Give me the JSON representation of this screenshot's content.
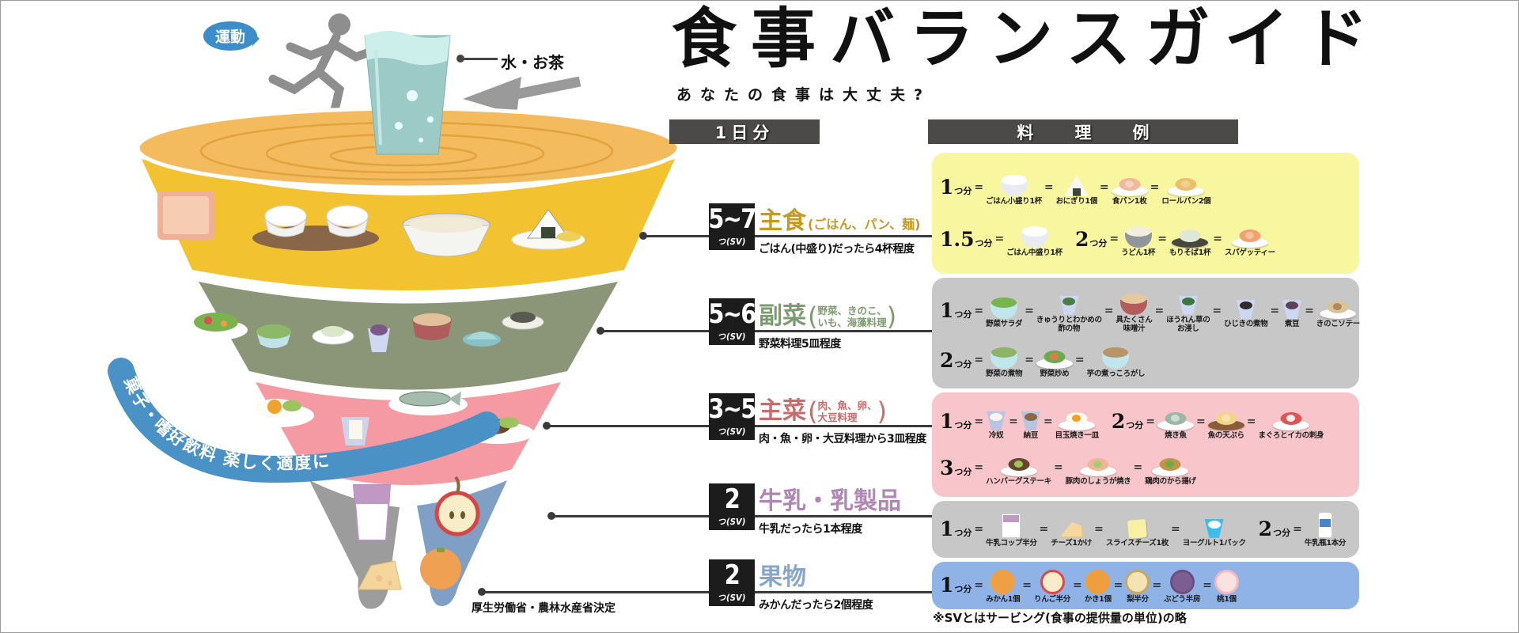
{
  "title": {
    "main": "食事バランスガイド",
    "subtitle": "あなたの食事は大丈夫?"
  },
  "headers": {
    "daily": "1日分",
    "examples": "料理例"
  },
  "koma": {
    "exercise_label": "運動",
    "water_label": "水・お茶",
    "ribbon_label": "菓子・嗜好飲料 楽しく適度に",
    "authority_label": "厚生労働省・農林水産省決定",
    "colors": {
      "disc": "#f3ba5e",
      "grain": "#f2c230",
      "vegetable": "#8b9679",
      "main_dish": "#f59aa2",
      "milk": "#9c9c9c",
      "fruit": "#7fa0c4",
      "ribbon": "#4a92c6",
      "water": "#9ccbc7"
    }
  },
  "categories": [
    {
      "id": "grain",
      "sv": "5~7",
      "sv_unit": "つ(SV)",
      "name": "主食",
      "name_color": "#c49a20",
      "paren_inline": "(ごはん、パン、麺)",
      "paren_lines": [],
      "desc": "ごはん(中盛り)だったら4杯程度"
    },
    {
      "id": "vegetable",
      "sv": "5~6",
      "sv_unit": "つ(SV)",
      "name": "副菜",
      "name_color": "#7d9b70",
      "paren_inline": "",
      "paren_lines": [
        "野菜、きのこ、",
        "いも、海藻料理"
      ],
      "desc": "野菜料理5皿程度"
    },
    {
      "id": "main-dish",
      "sv": "3~5",
      "sv_unit": "つ(SV)",
      "name": "主菜",
      "name_color": "#c76b6b",
      "paren_inline": "",
      "paren_lines": [
        "肉、魚、卵、",
        "大豆料理"
      ],
      "desc": "肉・魚・卵・大豆料理から3皿程度"
    },
    {
      "id": "milk",
      "sv": "2",
      "sv_unit": "つ(SV)",
      "name": "牛乳・乳製品",
      "name_color": "#af86b4",
      "paren_inline": "",
      "paren_lines": [],
      "desc": "牛乳だったら1本程度"
    },
    {
      "id": "fruit",
      "sv": "2",
      "sv_unit": "つ(SV)",
      "name": "果物",
      "name_color": "#88a6cc",
      "paren_inline": "",
      "paren_lines": [],
      "desc": "みかんだったら2個程度"
    }
  ],
  "panels": [
    {
      "id": "grain",
      "bg": "#f8f7a0",
      "rows": [
        {
          "groups": [
            {
              "num": "1",
              "unit": "つ分",
              "items": [
                {
                  "icon": "rice-bowl-small-icon",
                  "shape": "bowl",
                  "c1": "#e8ecf0",
                  "c2": "#ffffff",
                  "label": "ごはん小盛り1杯"
                },
                {
                  "icon": "onigiri-icon",
                  "shape": "triangle",
                  "c1": "#f8f8f2",
                  "c2": "#3a4836",
                  "label": "おにぎり1個"
                },
                {
                  "icon": "bread-slice-icon",
                  "shape": "plate",
                  "c1": "#f0b89c",
                  "c2": "#f6d2bc",
                  "label": "食パン1枚"
                },
                {
                  "icon": "bread-rolls-icon",
                  "shape": "plate",
                  "c1": "#ecc06a",
                  "c2": "#f2d290",
                  "label": "ロールパン2個"
                }
              ]
            }
          ]
        },
        {
          "groups": [
            {
              "num": "1.5",
              "unit": "つ分",
              "items": [
                {
                  "icon": "rice-bowl-medium-icon",
                  "shape": "bowl",
                  "c1": "#e8ecf0",
                  "c2": "#ffffff",
                  "label": "ごはん中盛り1杯"
                }
              ]
            },
            {
              "num": "2",
              "unit": "つ分",
              "items": [
                {
                  "icon": "udon-bowl-icon",
                  "shape": "bowl",
                  "c1": "#8f969c",
                  "c2": "#f4eede",
                  "label": "うどん1杯"
                },
                {
                  "icon": "soba-tray-icon",
                  "shape": "plate",
                  "pc": "#4a4640",
                  "c1": "#dfe8d8",
                  "label": "もりそば1杯"
                },
                {
                  "icon": "spaghetti-icon",
                  "shape": "plate",
                  "c1": "#f0a270",
                  "c2": "#f6c29a",
                  "label": "スパゲッティー"
                }
              ]
            }
          ]
        }
      ]
    },
    {
      "id": "vegetable",
      "bg": "#c7c7c7",
      "rows": [
        {
          "groups": [
            {
              "num": "1",
              "unit": "つ分",
              "items": [
                {
                  "icon": "salad-bowl-icon",
                  "shape": "bowl",
                  "c1": "#bfe6ec",
                  "c2": "#79b44e",
                  "label": "野菜サラダ"
                },
                {
                  "icon": "vinegared-dish-icon",
                  "shape": "cup",
                  "c1": "#ccd8f2",
                  "c2": "#4c7c44",
                  "label": "きゅうりとわかめの\n酢の物"
                },
                {
                  "icon": "miso-soup-icon",
                  "shape": "bowl",
                  "c1": "#b25c5c",
                  "c2": "#e6c8a0",
                  "label": "具たくさん\n味噌汁"
                },
                {
                  "icon": "spinach-ohitashi-icon",
                  "shape": "cup",
                  "c1": "#ccd8f2",
                  "c2": "#3c7840",
                  "label": "ほうれん草の\nお浸し"
                },
                {
                  "icon": "hijiki-icon",
                  "shape": "cup",
                  "c1": "#ccd8f2",
                  "c2": "#2c2c2c",
                  "label": "ひじきの煮物"
                },
                {
                  "icon": "boiled-beans-icon",
                  "shape": "cup",
                  "c1": "#ccd8f2",
                  "c2": "#5c4258",
                  "label": "煮豆"
                },
                {
                  "icon": "mushroom-saute-icon",
                  "shape": "plate",
                  "c1": "#d8c49a",
                  "c2": "#b08a56",
                  "label": "きのこソテー"
                }
              ]
            }
          ]
        },
        {
          "groups": [
            {
              "num": "2",
              "unit": "つ分",
              "items": [
                {
                  "icon": "simmered-vegetables-icon",
                  "shape": "bowl",
                  "c1": "#bfe6ec",
                  "c2": "#8cb464",
                  "label": "野菜の煮物"
                },
                {
                  "icon": "stir-fried-vegetables-icon",
                  "shape": "plate",
                  "c1": "#6cab4a",
                  "c2": "#e07850",
                  "label": "野菜炒め"
                },
                {
                  "icon": "simmered-potato-icon",
                  "shape": "bowl",
                  "c1": "#bfe6ec",
                  "c2": "#b89468",
                  "label": "芋の煮っころがし"
                }
              ]
            }
          ]
        }
      ]
    },
    {
      "id": "main-dish",
      "bg": "#f8c6ca",
      "rows": [
        {
          "groups": [
            {
              "num": "1",
              "unit": "つ分",
              "items": [
                {
                  "icon": "cold-tofu-icon",
                  "shape": "cup",
                  "c1": "#b8c4e2",
                  "c2": "#f8f6ec",
                  "label": "冷奴"
                },
                {
                  "icon": "natto-icon",
                  "shape": "cup",
                  "c1": "#b8c4e2",
                  "c2": "#8a6840",
                  "label": "納豆"
                },
                {
                  "icon": "fried-egg-icon",
                  "shape": "plate",
                  "c1": "#fcf8ec",
                  "c2": "#f0a028",
                  "label": "目玉焼き一皿"
                }
              ]
            },
            {
              "num": "2",
              "unit": "つ分",
              "items": [
                {
                  "icon": "grilled-fish-icon",
                  "shape": "plate",
                  "c1": "#9cb8a4",
                  "c2": "#ccdcd0",
                  "label": "焼き魚"
                },
                {
                  "icon": "fish-tempura-icon",
                  "shape": "plate",
                  "pc": "#8a5c38",
                  "c1": "#f0d488",
                  "c2": "#f6e2ac",
                  "label": "魚の天ぷら"
                },
                {
                  "icon": "sashimi-icon",
                  "shape": "plate",
                  "c1": "#e25454",
                  "c2": "#f6f0ec",
                  "label": "まぐろとイカの刺身"
                }
              ]
            }
          ]
        },
        {
          "groups": [
            {
              "num": "3",
              "unit": "つ分",
              "items": [
                {
                  "icon": "hamburg-steak-icon",
                  "shape": "plate",
                  "c1": "#68462e",
                  "c2": "#9cc45e",
                  "label": "ハンバーグステーキ"
                },
                {
                  "icon": "ginger-pork-icon",
                  "shape": "plate",
                  "c1": "#f0b49a",
                  "c2": "#a8cc6a",
                  "label": "豚肉のしょうが焼き"
                },
                {
                  "icon": "fried-chicken-icon",
                  "shape": "plate",
                  "c1": "#c69448",
                  "c2": "#6cab4a",
                  "label": "鶏肉のから揚げ"
                }
              ]
            }
          ]
        }
      ]
    },
    {
      "id": "milk",
      "bg": "#c7c7c7",
      "rows": [
        {
          "groups": [
            {
              "num": "1",
              "unit": "つ分",
              "items": [
                {
                  "icon": "milk-cup-icon",
                  "shape": "glass",
                  "c1": "#bf98c4",
                  "label": "牛乳コップ半分"
                },
                {
                  "icon": "cheese-piece-icon",
                  "shape": "wedge",
                  "c1": "#f6d89c",
                  "label": "チーズ1かけ"
                },
                {
                  "icon": "sliced-cheese-icon",
                  "shape": "square",
                  "c1": "#f8f0a2",
                  "label": "スライスチーズ1枚"
                },
                {
                  "icon": "yogurt-icon",
                  "shape": "cup",
                  "c1": "#40bce8",
                  "c2": "#fcfcfc",
                  "label": "ヨーグルト1パック"
                }
              ]
            },
            {
              "num": "2",
              "unit": "つ分",
              "items": [
                {
                  "icon": "milk-bottle-icon",
                  "shape": "bottle",
                  "c1": "#4a84c8",
                  "label": "牛乳瓶1本分"
                }
              ]
            }
          ]
        }
      ]
    },
    {
      "id": "fruit",
      "bg": "#8fb3e6",
      "rows": [
        {
          "groups": [
            {
              "num": "1",
              "unit": "つ分",
              "items": [
                {
                  "icon": "mikan-icon",
                  "shape": "fruit",
                  "c1": "#f0a044",
                  "c2": "#f0a044",
                  "label": "みかん1個"
                },
                {
                  "icon": "apple-half-icon",
                  "shape": "fruit",
                  "c1": "#f8ecca",
                  "c2": "#e04848",
                  "label": "りんご半分"
                },
                {
                  "icon": "persimmon-icon",
                  "shape": "fruit",
                  "c1": "#ef9e3e",
                  "c2": "#ef9e3e",
                  "label": "かき1個"
                },
                {
                  "icon": "pear-half-icon",
                  "shape": "fruit",
                  "c1": "#f4e4b4",
                  "c2": "#c8a860",
                  "label": "梨半分"
                },
                {
                  "icon": "grape-icon",
                  "shape": "fruit",
                  "c1": "#7c5e92",
                  "c2": "#6a4e80",
                  "label": "ぶどう半房"
                },
                {
                  "icon": "peach-icon",
                  "shape": "fruit",
                  "c1": "#fae2e0",
                  "c2": "#f4b8c0",
                  "label": "桃1個"
                }
              ]
            }
          ]
        }
      ]
    }
  ],
  "footnote": "※SVとはサービング(食事の提供量の単位)の略"
}
